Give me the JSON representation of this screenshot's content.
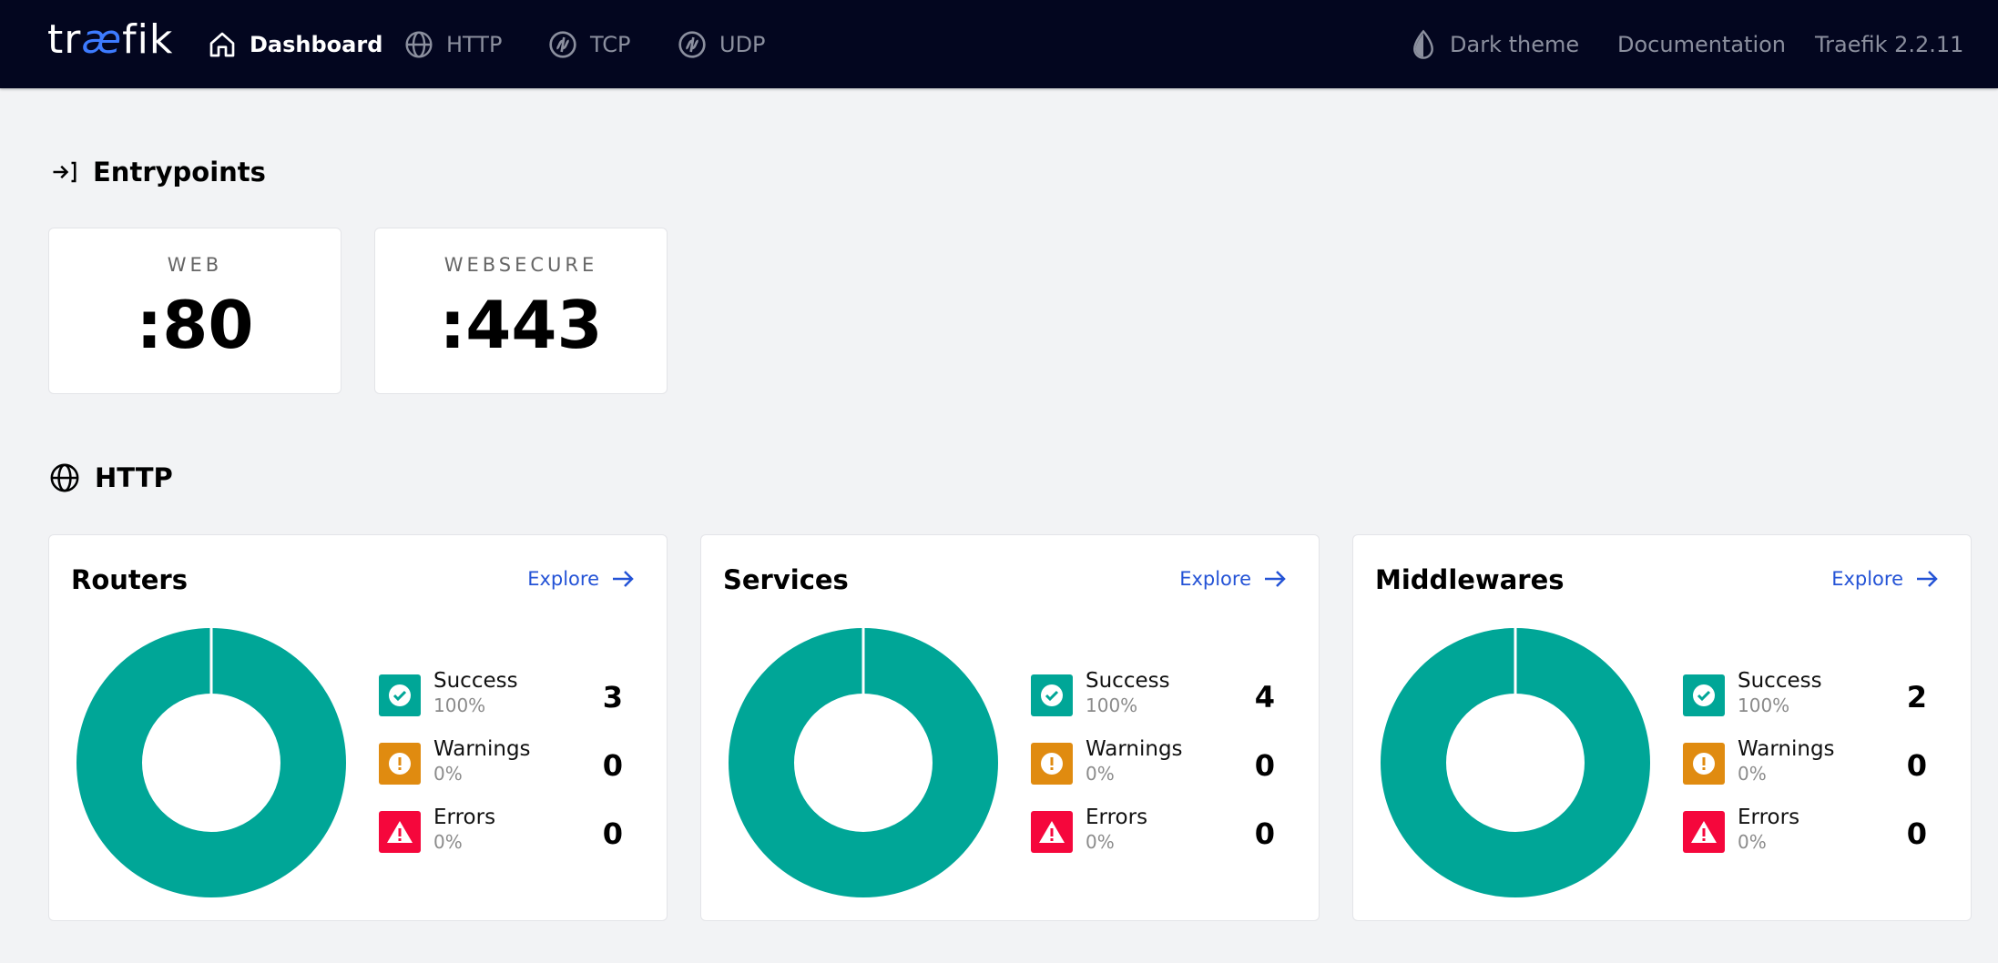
{
  "colors": {
    "topbar": "#03061f",
    "success": "#00a697",
    "warning": "#e08b10",
    "error": "#f5073c",
    "link": "#2453d6"
  },
  "topbar": {
    "logo": {
      "pre": "tr",
      "accent": "æ",
      "post": "fik"
    },
    "nav": [
      {
        "label": "Dashboard",
        "icon": "home-icon",
        "active": true
      },
      {
        "label": "HTTP",
        "icon": "globe-icon"
      },
      {
        "label": "TCP",
        "icon": "tcp-icon"
      },
      {
        "label": "UDP",
        "icon": "udp-icon"
      }
    ],
    "dark_theme": "Dark theme",
    "documentation": "Documentation",
    "version": "Traefik 2.2.11"
  },
  "entrypoints": {
    "title": "Entrypoints",
    "items": [
      {
        "name": "WEB",
        "port": ":80"
      },
      {
        "name": "WEBSECURE",
        "port": ":443"
      }
    ]
  },
  "http": {
    "title": "HTTP",
    "explore": "Explore",
    "cards": [
      {
        "title": "Routers",
        "success": {
          "label": "Success",
          "pct": "100%",
          "count": "3"
        },
        "warnings": {
          "label": "Warnings",
          "pct": "0%",
          "count": "0"
        },
        "errors": {
          "label": "Errors",
          "pct": "0%",
          "count": "0"
        }
      },
      {
        "title": "Services",
        "success": {
          "label": "Success",
          "pct": "100%",
          "count": "4"
        },
        "warnings": {
          "label": "Warnings",
          "pct": "0%",
          "count": "0"
        },
        "errors": {
          "label": "Errors",
          "pct": "0%",
          "count": "0"
        }
      },
      {
        "title": "Middlewares",
        "success": {
          "label": "Success",
          "pct": "100%",
          "count": "2"
        },
        "warnings": {
          "label": "Warnings",
          "pct": "0%",
          "count": "0"
        },
        "errors": {
          "label": "Errors",
          "pct": "0%",
          "count": "0"
        }
      }
    ]
  }
}
